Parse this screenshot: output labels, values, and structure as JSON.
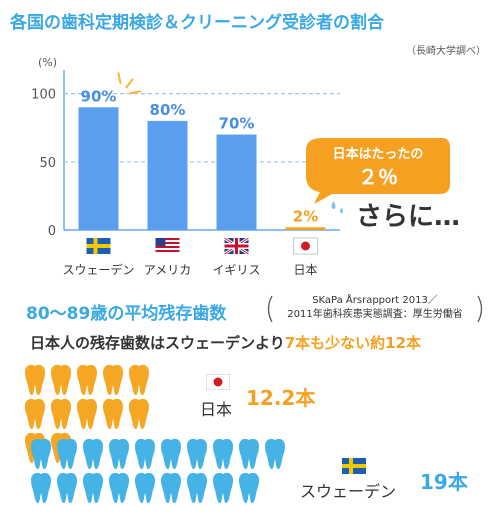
{
  "title": "各国の歯科定期検診＆クリーニング受診者の割合",
  "source": "（長崎大学調べ）",
  "chart_data": {
    "type": "bar",
    "categories": [
      "スウェーデン",
      "アメリカ",
      "イギリス",
      "日本"
    ],
    "values": [
      90,
      80,
      70,
      2
    ],
    "value_labels": [
      "90%",
      "80%",
      "70%",
      "2%"
    ],
    "ylabel": "(%)",
    "yticks": [
      0,
      50,
      100
    ],
    "ylim": [
      0,
      110
    ],
    "colors": [
      "#5a9ef0",
      "#5a9ef0",
      "#5a9ef0",
      "#f5a020"
    ],
    "label_colors": [
      "#4a8ee0",
      "#4a8ee0",
      "#4a8ee0",
      "#f5a020"
    ]
  },
  "bubble": {
    "line1": "日本はたったの",
    "line2": "２％"
  },
  "more": "さらに…",
  "section2": {
    "title": "80～89歳の平均残存歯数",
    "source_line1": "SKaPa Årsrapport 2013／",
    "source_line2": "2011年歯科疾患実態調査：厚生労働省",
    "sub_part1": "日本人の残存歯数はスウェーデンより",
    "sub_part2": "7本も少ない約12本",
    "japan_label": "日本",
    "japan_value": "12.2本",
    "japan_teeth": 12,
    "sweden_label": "スウェーデン",
    "sweden_value": "19本",
    "sweden_teeth": 19,
    "japan_color": "#f5a623",
    "sweden_color": "#45b3e6"
  }
}
